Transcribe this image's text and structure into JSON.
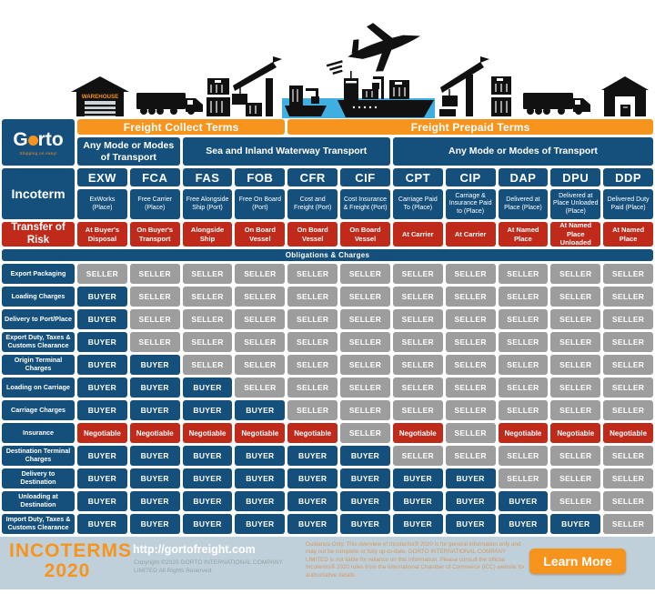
{
  "logo": {
    "name": "Gorto",
    "name_prefix": "G",
    "name_suffix": "rto",
    "tagline": "Shipping on easy!"
  },
  "header": {
    "freight_groups": [
      {
        "label": "Freight Collect Terms",
        "columns_spanned": 4
      },
      {
        "label": "Freight Prepaid Terms",
        "columns_spanned": 7
      }
    ],
    "mode_groups": [
      {
        "label": "Any Mode or Modes of Transport",
        "columns_spanned": 2
      },
      {
        "label": "Sea and Inland Waterway Transport",
        "columns_spanned": 4
      },
      {
        "label": "Any Mode or Modes of Transport",
        "columns_spanned": 5
      }
    ]
  },
  "chart_data": {
    "type": "table",
    "title": "INCOTERMS 2020",
    "incoterm_label": "Incoterm",
    "risk_label": "Transfer of Risk",
    "obligations_label": "Obligations & Charges",
    "legend": {
      "SELLER": "grey",
      "BUYER": "navy blue",
      "Negotiable": "red"
    },
    "columns": [
      {
        "code": "EXW",
        "desc": "ExWorks (Place)",
        "risk": "At Buyer's Disposal"
      },
      {
        "code": "FCA",
        "desc": "Free Carrier (Place)",
        "risk": "On Buyer's Transport"
      },
      {
        "code": "FAS",
        "desc": "Free Alongside Ship (Port)",
        "risk": "Alongside Ship"
      },
      {
        "code": "FOB",
        "desc": "Free On Board (Port)",
        "risk": "On Board Vessel"
      },
      {
        "code": "CFR",
        "desc": "Cost and Freight (Port)",
        "risk": "On Board Vessel"
      },
      {
        "code": "CIF",
        "desc": "Cost Insurance & Freight (Port)",
        "risk": "On Board Vessel"
      },
      {
        "code": "CPT",
        "desc": "Carriage Paid To (Place)",
        "risk": "At Carrier"
      },
      {
        "code": "CIP",
        "desc": "Carriage & Insurance Paid to (Place)",
        "risk": "At Carrier"
      },
      {
        "code": "DAP",
        "desc": "Delivered at Place (Place)",
        "risk": "At Named Place"
      },
      {
        "code": "DPU",
        "desc": "Delivered at Place Unloaded (Place)",
        "risk": "At Named Place Unloaded"
      },
      {
        "code": "DDP",
        "desc": "Delivered Duty Paid (Place)",
        "risk": "At Named Place"
      }
    ],
    "rows": [
      {
        "label": "Export Packaging",
        "cells": [
          "SELLER",
          "SELLER",
          "SELLER",
          "SELLER",
          "SELLER",
          "SELLER",
          "SELLER",
          "SELLER",
          "SELLER",
          "SELLER",
          "SELLER"
        ]
      },
      {
        "label": "Loading Charges",
        "cells": [
          "BUYER",
          "SELLER",
          "SELLER",
          "SELLER",
          "SELLER",
          "SELLER",
          "SELLER",
          "SELLER",
          "SELLER",
          "SELLER",
          "SELLER"
        ]
      },
      {
        "label": "Delivery to Port/Place",
        "cells": [
          "BUYER",
          "SELLER",
          "SELLER",
          "SELLER",
          "SELLER",
          "SELLER",
          "SELLER",
          "SELLER",
          "SELLER",
          "SELLER",
          "SELLER"
        ]
      },
      {
        "label": "Export Duty, Taxes & Customs Clearance",
        "cells": [
          "BUYER",
          "SELLER",
          "SELLER",
          "SELLER",
          "SELLER",
          "SELLER",
          "SELLER",
          "SELLER",
          "SELLER",
          "SELLER",
          "SELLER"
        ]
      },
      {
        "label": "Origin Terminal Charges",
        "cells": [
          "BUYER",
          "BUYER",
          "SELLER",
          "SELLER",
          "SELLER",
          "SELLER",
          "SELLER",
          "SELLER",
          "SELLER",
          "SELLER",
          "SELLER"
        ]
      },
      {
        "label": "Loading on Carriage",
        "cells": [
          "BUYER",
          "BUYER",
          "BUYER",
          "SELLER",
          "SELLER",
          "SELLER",
          "SELLER",
          "SELLER",
          "SELLER",
          "SELLER",
          "SELLER"
        ]
      },
      {
        "label": "Carriage Charges",
        "cells": [
          "BUYER",
          "BUYER",
          "BUYER",
          "BUYER",
          "SELLER",
          "SELLER",
          "SELLER",
          "SELLER",
          "SELLER",
          "SELLER",
          "SELLER"
        ]
      },
      {
        "label": "Insurance",
        "cells": [
          "Negotiable",
          "Negotiable",
          "Negotiable",
          "Negotiable",
          "Negotiable",
          "SELLER",
          "Negotiable",
          "SELLER",
          "Negotiable",
          "Negotiable",
          "Negotiable"
        ]
      },
      {
        "label": "Destination Terminal Charges",
        "cells": [
          "BUYER",
          "BUYER",
          "BUYER",
          "BUYER",
          "BUYER",
          "BUYER",
          "SELLER",
          "SELLER",
          "SELLER",
          "SELLER",
          "SELLER"
        ]
      },
      {
        "label": "Delivery to Destination",
        "cells": [
          "BUYER",
          "BUYER",
          "BUYER",
          "BUYER",
          "BUYER",
          "BUYER",
          "BUYER",
          "BUYER",
          "SELLER",
          "SELLER",
          "SELLER"
        ]
      },
      {
        "label": "Unloading at Destination",
        "cells": [
          "BUYER",
          "BUYER",
          "BUYER",
          "BUYER",
          "BUYER",
          "BUYER",
          "BUYER",
          "BUYER",
          "BUYER",
          "SELLER",
          "SELLER"
        ]
      },
      {
        "label": "Import Duty, Taxes & Customs Clearance",
        "cells": [
          "BUYER",
          "BUYER",
          "BUYER",
          "BUYER",
          "BUYER",
          "BUYER",
          "BUYER",
          "BUYER",
          "BUYER",
          "BUYER",
          "SELLER"
        ]
      }
    ]
  },
  "footer": {
    "title_line1": "INCOTERMS",
    "title_line2": "2020",
    "url": "http://gortofreight.com",
    "copyright": "Copyright ©2020 GORTO INTERNATIONAL COMPANY LIMITED All Rights Reserved.",
    "guidance": "Guidance Only. This overview of Incoterms® 2020 is for general information only and may not be complete or fully up-to-date. GORTO INTERNATIONAL COMPANY LIMITED is not liable for reliance on this information. Please consult the official Incoterms® 2020 rules from the International Chamber of Commerce (ICC) website for authoritative details.",
    "button_label": "Learn More"
  },
  "illustration": {
    "warehouse_sign": "WAREHOUSE",
    "icons": [
      "warehouse-icon",
      "truck-icon-left",
      "container-stack-icon-left",
      "crane-icon-left",
      "feeder-ship-icon",
      "water",
      "airplane-icon",
      "cargo-ship-icon",
      "crane-icon-right",
      "container-stack-icon-right",
      "truck-icon-right",
      "garage-icon"
    ]
  },
  "colors": {
    "navy": "#15507D",
    "orange": "#F7941D",
    "red": "#BF2A1B",
    "grey": "#9D9D9D",
    "footer_bg": "#BFD0DB",
    "water_blue": "#3FAEE0",
    "icon_black": "#111111"
  }
}
